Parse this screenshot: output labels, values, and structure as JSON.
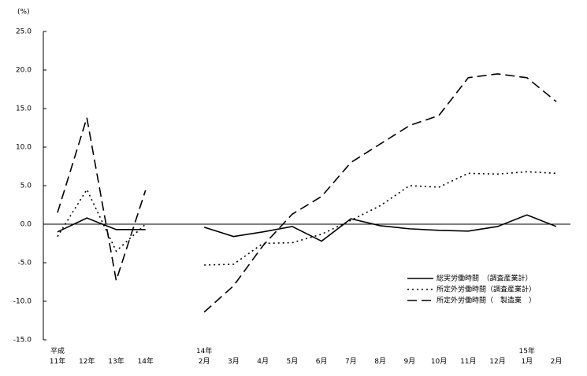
{
  "chart_data": {
    "type": "line",
    "y_axis_label": "(%)",
    "categories": [
      "平成\n11年",
      "12年",
      "13年",
      "14年",
      null,
      "14年\n2月",
      "3月",
      "4月",
      "5月",
      "6月",
      "7月",
      "8月",
      "9月",
      "10月",
      "11月",
      "12月",
      "15年\n1月",
      "2月"
    ],
    "series": [
      {
        "name": "総実労働時間　（調査産業計）",
        "color": "#000000",
        "dash": "solid",
        "values": [
          -1.0,
          0.8,
          -0.7,
          -0.7,
          null,
          -0.4,
          -1.6,
          -1.0,
          -0.3,
          -2.2,
          0.7,
          -0.2,
          -0.6,
          -0.8,
          -0.9,
          -0.3,
          1.2,
          -0.3
        ]
      },
      {
        "name": "所定外労働時間（調査産業計）",
        "color": "#000000",
        "dash": "dotted",
        "values": [
          -1.6,
          4.5,
          -3.5,
          0.0,
          null,
          -5.3,
          -5.2,
          -2.5,
          -2.4,
          -1.3,
          0.5,
          2.4,
          5.0,
          4.8,
          6.6,
          6.5,
          6.8,
          6.6
        ]
      },
      {
        "name": "所定外労働時間（　製造業　）",
        "color": "#000000",
        "dash": "dashed",
        "values": [
          1.5,
          13.8,
          -7.3,
          4.4,
          null,
          -11.4,
          -8.0,
          -2.8,
          1.3,
          3.6,
          8.0,
          10.4,
          12.8,
          14.1,
          19.0,
          19.5,
          19.0,
          15.9
        ]
      }
    ],
    "ylim": [
      -15,
      25
    ],
    "yticks": [
      {
        "value": -15,
        "label": "-15.0"
      },
      {
        "value": -10,
        "label": "-10.0"
      },
      {
        "value": -5,
        "label": "-5.0"
      },
      {
        "value": 0,
        "label": "0.0"
      },
      {
        "value": 5,
        "label": "5.0"
      },
      {
        "value": 10,
        "label": "10.0"
      },
      {
        "value": 15,
        "label": "15.0"
      },
      {
        "value": 20,
        "label": "20.0"
      },
      {
        "value": 25,
        "label": "25.0"
      }
    ],
    "grid": false,
    "legend": "lower right"
  }
}
